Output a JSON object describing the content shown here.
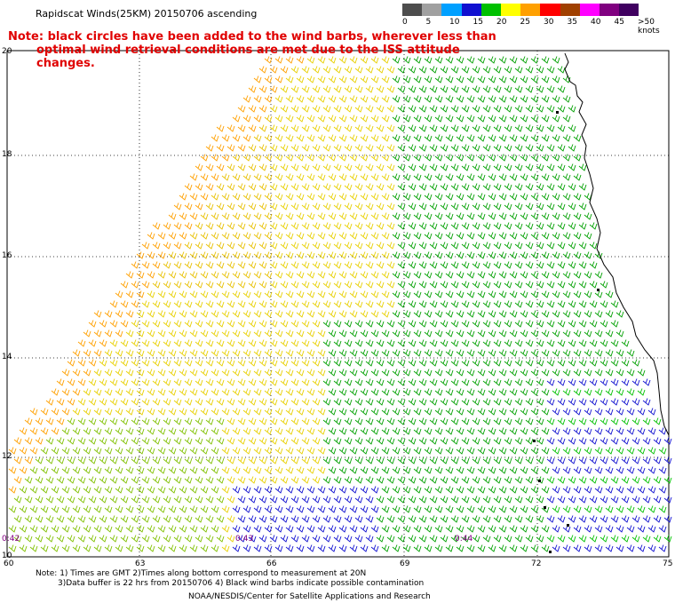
{
  "title": "Rapidscat Winds(25KM) 20150706 ascending",
  "note_line1": "Note: black circles have been added to the wind barbs, wherever less than",
  "note_line2": "optimal wind retrieval conditions are met due to the ISS attitude changes.",
  "colorbar": {
    "labels": [
      "0",
      "5",
      "10",
      "15",
      "20",
      "25",
      "30",
      "35",
      "40",
      "45",
      ">50 knots"
    ],
    "colors": [
      "#4d4d4d",
      "#a0a0a0",
      "#00a0ff",
      "#1010d0",
      "#00c000",
      "#ffff00",
      "#ffa000",
      "#ff0000",
      "#a04000",
      "#ff00ff",
      "#800080",
      "#400060"
    ]
  },
  "map": {
    "lat_labels": [
      "20",
      "18",
      "16",
      "14",
      "12",
      "10"
    ],
    "lon_labels": [
      "60",
      "63",
      "66",
      "69",
      "72",
      "75"
    ],
    "sat_times": [
      "0:42",
      "0:43",
      "0:44"
    ]
  },
  "footer": {
    "line1": "Note: 1) Times are GMT 2)Times along bottom correspond to measurement at 20N",
    "line2": "3)Data buffer is 22 hrs from 20150706 4) Black wind barbs indicate possible contamination",
    "line3": "NOAA/NESDIS/Center for Satellite Applications and Research"
  }
}
